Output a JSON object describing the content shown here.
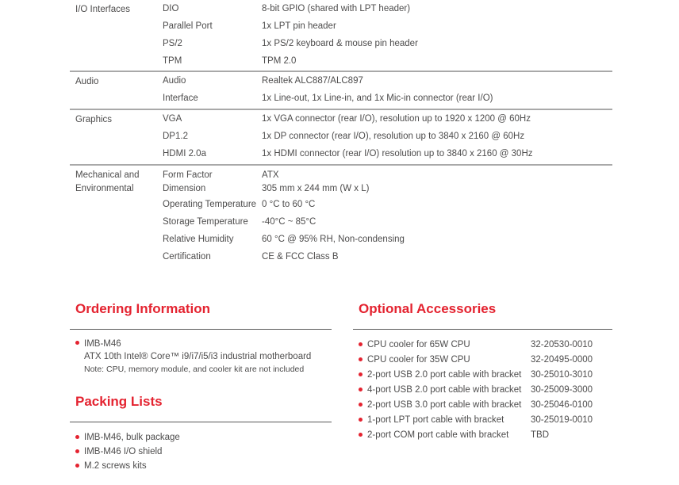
{
  "colors": {
    "accent_red": "#e42330",
    "body_text": "#4d4c4c",
    "table_divider": "#a9a9a9",
    "heading_rule": "#595959"
  },
  "spec_table": {
    "sections": [
      {
        "category": "I/O Interfaces",
        "rows": [
          {
            "label": "DIO",
            "value": "8-bit GPIO (shared with LPT header)"
          },
          {
            "label": "Parallel Port",
            "value": "1x LPT pin header"
          },
          {
            "label": "PS/2",
            "value": "1x PS/2 keyboard & mouse pin header"
          },
          {
            "label": "TPM",
            "value": "TPM 2.0"
          }
        ]
      },
      {
        "category": "Audio",
        "rows": [
          {
            "label": "Audio",
            "value": "Realtek ALC887/ALC897"
          },
          {
            "label": "Interface",
            "value": "1x Line-out, 1x Line-in, and 1x Mic-in connector (rear I/O)"
          }
        ]
      },
      {
        "category": "Graphics",
        "rows": [
          {
            "label": "VGA",
            "value": "1x VGA connector (rear I/O), resolution up to 1920 x 1200 @ 60Hz"
          },
          {
            "label": "DP1.2",
            "value": "1x DP connector (rear I/O), resolution up to 3840 x 2160 @ 60Hz"
          },
          {
            "label": "HDMI 2.0a",
            "value": "1x HDMI connector (rear I/O) resolution up to 3840 x 2160 @ 30Hz"
          }
        ]
      },
      {
        "category": "Mechanical and Environmental",
        "rows": [
          {
            "label": "Form Factor",
            "value": "ATX"
          },
          {
            "label": "Dimension",
            "value": "305 mm x 244 mm (W x L)"
          },
          {
            "label": "Operating Temperature",
            "value": "0 °C to 60 °C"
          },
          {
            "label": "Storage Temperature",
            "value": "-40°C ~ 85°C"
          },
          {
            "label": "Relative Humidity",
            "value": "60 °C @ 95% RH, Non-condensing"
          },
          {
            "label": "Certification",
            "value": "CE & FCC Class B"
          }
        ]
      }
    ]
  },
  "ordering": {
    "title": "Ordering Information",
    "item_name": "IMB-M46",
    "item_description": "ATX 10th Intel® Core™ i9/i7/i5/i3 industrial motherboard",
    "item_note": "Note: CPU, memory module, and cooler kit are not included"
  },
  "packing": {
    "title": "Packing Lists",
    "items": [
      "IMB-M46, bulk package",
      "IMB-M46 I/O shield",
      "M.2 screws kits"
    ]
  },
  "accessories": {
    "title": "Optional Accessories",
    "items": [
      {
        "name": "CPU cooler for 65W CPU",
        "part": "32-20530-0010"
      },
      {
        "name": "CPU cooler for 35W CPU",
        "part": "32-20495-0000"
      },
      {
        "name": "2-port USB 2.0 port cable with bracket",
        "part": "30-25010-3010"
      },
      {
        "name": "4-port USB 2.0 port cable with bracket",
        "part": "30-25009-3000"
      },
      {
        "name": "2-port USB 3.0 port cable with bracket",
        "part": "30-25046-0100"
      },
      {
        "name": "1-port LPT port cable with bracket",
        "part": "30-25019-0010"
      },
      {
        "name": "2-port COM port cable with bracket",
        "part": "TBD"
      }
    ]
  }
}
